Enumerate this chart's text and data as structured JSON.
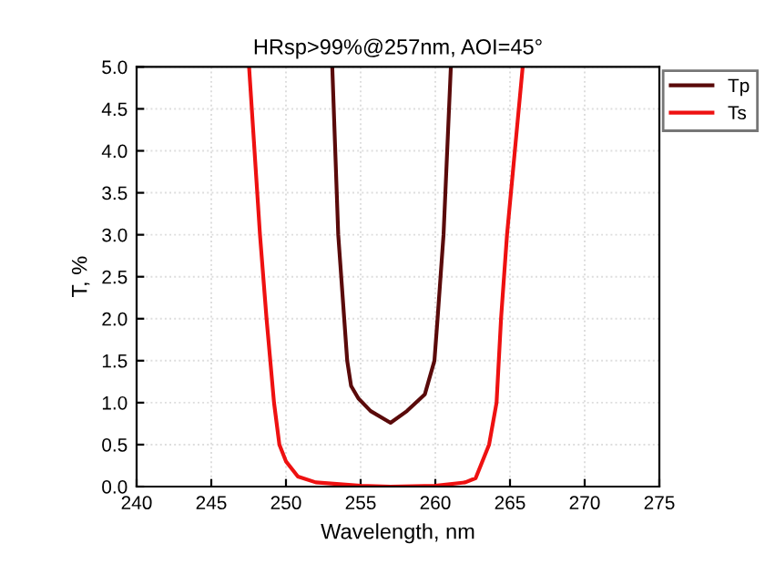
{
  "chart_data": {
    "type": "line",
    "title": "HRsp>99%@257nm, AOI=45°",
    "xlabel": "Wavelength, nm",
    "ylabel": "T, %",
    "series": [
      {
        "name": "Tp",
        "color": "#5a0a0a",
        "x": [
          253.1,
          253.5,
          253.9,
          254.1,
          254.36,
          254.85,
          255.67,
          257.0,
          258.1,
          259.3,
          259.94,
          260.15,
          260.55,
          261.04
        ],
        "values": [
          5.0,
          3.0,
          2.0,
          1.5,
          1.2,
          1.05,
          0.9,
          0.76,
          0.9,
          1.1,
          1.5,
          2.0,
          3.0,
          5.0
        ]
      },
      {
        "name": "Ts",
        "color": "#ee1111",
        "x": [
          247.53,
          248.26,
          248.7,
          249.2,
          249.56,
          250.0,
          250.8,
          252.0,
          255.0,
          257.0,
          260.0,
          262.0,
          262.7,
          263.6,
          264.1,
          264.4,
          264.8,
          265.85
        ],
        "values": [
          5.0,
          3.0,
          2.0,
          1.0,
          0.5,
          0.3,
          0.12,
          0.05,
          0.01,
          0.0,
          0.01,
          0.05,
          0.1,
          0.5,
          1.0,
          2.0,
          3.0,
          5.0
        ]
      }
    ],
    "xlim": [
      240,
      275
    ],
    "xticks": [
      240,
      245,
      250,
      255,
      260,
      265,
      270,
      275
    ],
    "ylim": [
      0,
      5
    ],
    "yticks": [
      {
        "value": 0,
        "label": "0.0"
      },
      0.5,
      {
        "value": 1,
        "label": "1.0"
      },
      1.5,
      {
        "value": 2,
        "label": "2.0"
      },
      2.5,
      {
        "value": 3,
        "label": "3.0"
      },
      3.5,
      {
        "value": 4,
        "label": "4.0"
      },
      4.5,
      {
        "value": 5,
        "label": "5.0"
      }
    ],
    "grid": true,
    "legend": "top right",
    "marker": "none",
    "line_style": "solid"
  }
}
